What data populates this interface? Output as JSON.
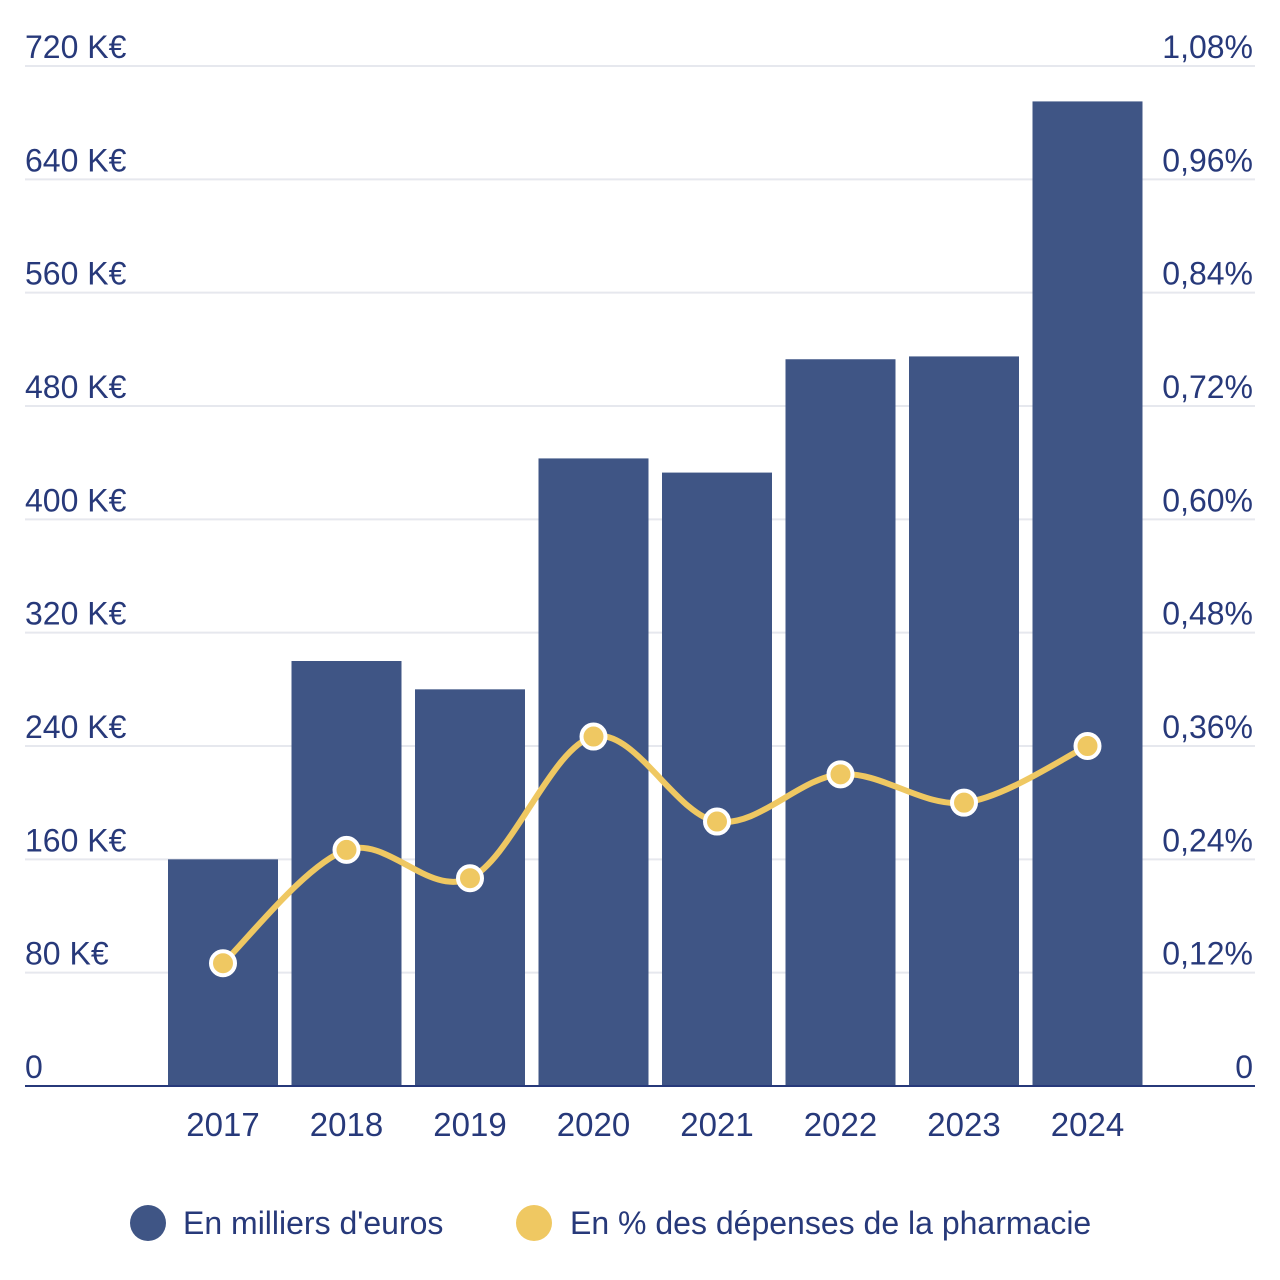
{
  "chart_data": {
    "type": "bar",
    "categories": [
      "2017",
      "2018",
      "2019",
      "2020",
      "2021",
      "2022",
      "2023",
      "2024"
    ],
    "series": [
      {
        "name": "En milliers d'euros",
        "type": "bar",
        "axis": "left",
        "color": "#3f5585",
        "values": [
          160,
          300,
          280,
          443,
          433,
          513,
          515,
          695
        ]
      },
      {
        "name": "En % des dépenses de la pharmacie",
        "type": "line",
        "axis": "right",
        "color": "#efc862",
        "values": [
          0.13,
          0.25,
          0.22,
          0.37,
          0.28,
          0.33,
          0.3,
          0.36
        ]
      }
    ],
    "y_left": {
      "range": [
        0,
        720
      ],
      "ticks": [
        0,
        80,
        160,
        240,
        320,
        400,
        480,
        560,
        640,
        720
      ],
      "tick_labels": [
        "0",
        "80 K€",
        "160 K€",
        "240 K€",
        "320 K€",
        "400 K€",
        "480 K€",
        "560 K€",
        "640 K€",
        "720 K€"
      ]
    },
    "y_right": {
      "range": [
        0,
        1.08
      ],
      "ticks": [
        0,
        0.12,
        0.24,
        0.36,
        0.48,
        0.6,
        0.72,
        0.84,
        0.96,
        1.08
      ],
      "tick_labels": [
        "0",
        "0,12%",
        "0,24%",
        "0,36%",
        "0,48%",
        "0,60%",
        "0,72%",
        "0,84%",
        "0,96%",
        "1,08%"
      ]
    },
    "grid": true,
    "legend_position": "bottom-center",
    "text_color": "#27397a",
    "grid_color": "#e6e8ee",
    "axis_color": "#27397a"
  }
}
